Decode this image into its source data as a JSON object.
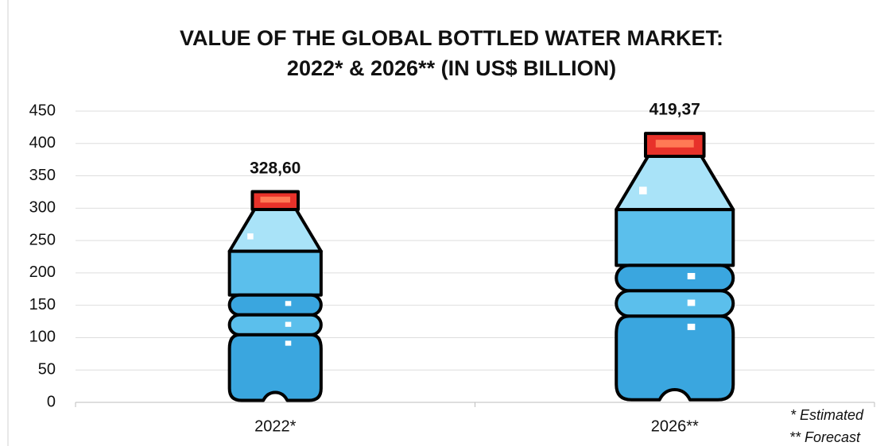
{
  "chart_data": {
    "type": "pictogram-bar",
    "title": [
      "VALUE OF THE GLOBAL BOTTLED WATER MARKET:",
      "2022* & 2026** (IN US$ BILLION)"
    ],
    "categories": [
      "2022*",
      "2026**"
    ],
    "values": [
      328.6,
      419.37
    ],
    "value_labels": [
      "328,60",
      "419,37"
    ],
    "color": "#5bbfec",
    "ylim": [
      0,
      450
    ],
    "yticks": [
      0,
      50,
      100,
      150,
      200,
      250,
      300,
      350,
      400,
      450
    ],
    "grid": true,
    "notes": [
      "* Estimated",
      "** Forecast"
    ]
  }
}
